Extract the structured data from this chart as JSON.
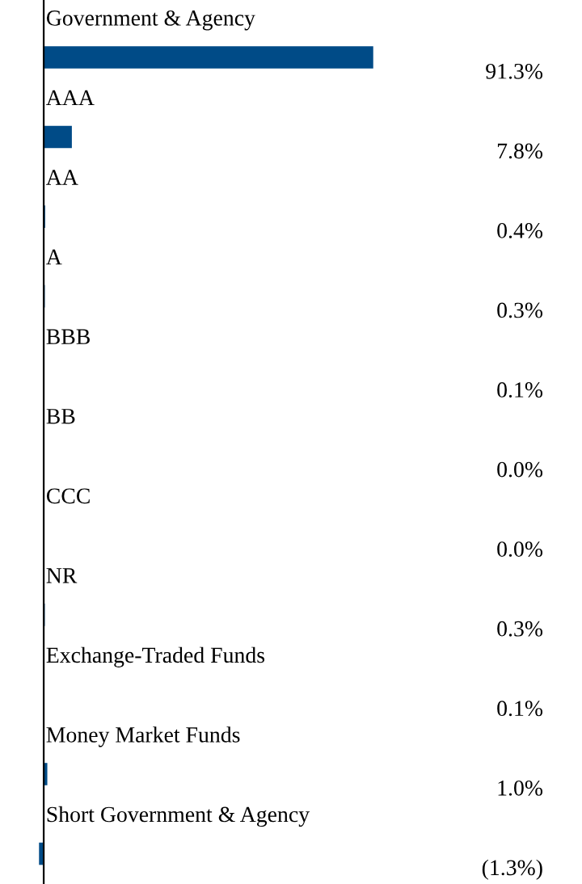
{
  "chart_data": {
    "type": "bar",
    "orientation": "horizontal",
    "categories": [
      "Government & Agency",
      "AAA",
      "AA",
      "A",
      "BBB",
      "BB",
      "CCC",
      "NR",
      "Exchange-Traded Funds",
      "Money Market Funds",
      "Short Government & Agency"
    ],
    "values": [
      91.3,
      7.8,
      0.4,
      0.3,
      0.1,
      0.0,
      0.0,
      0.3,
      0.1,
      1.0,
      -1.3
    ],
    "value_labels": [
      "91.3%",
      "7.8%",
      "0.4%",
      "0.3%",
      "0.1%",
      "0.0%",
      "0.0%",
      "0.3%",
      "0.1%",
      "1.0%",
      "(1.3%)"
    ],
    "color": "#004b87"
  }
}
